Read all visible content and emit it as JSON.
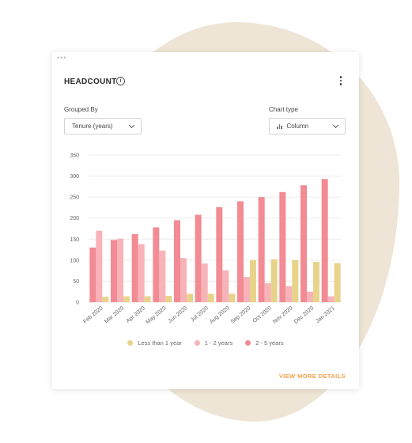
{
  "card": {
    "title": "HEADCOUNT",
    "info_icon": "info-circle-icon",
    "menu_icon": "vertical-ellipsis-icon",
    "grouped_by_label": "Grouped By",
    "grouped_by_value": "Tenure (years)",
    "chart_type_label": "Chart type",
    "chart_type_value": "Column",
    "view_more_label": "VIEW MORE DETAILS"
  },
  "colors": {
    "less_than_1": "#e8d38a",
    "one_to_two": "#f7b3b8",
    "two_to_five": "#f28b93",
    "accent": "#f5a04a",
    "background_blob": "#efe5d6"
  },
  "chart_data": {
    "type": "bar",
    "categories": [
      "Feb 2020",
      "Mar 2020",
      "Apr 2020",
      "May 2020",
      "Jun 2020",
      "Jul 2020",
      "Aug 2020",
      "Sep 2020",
      "Oct 2020",
      "Nov 2020",
      "Dec 2020",
      "Jan 2021"
    ],
    "series": [
      {
        "name": "2 - 5 years",
        "color": "#f28b93",
        "values": [
          130,
          148,
          162,
          178,
          195,
          208,
          226,
          240,
          250,
          262,
          278,
          293
        ]
      },
      {
        "name": "1 - 2 years",
        "color": "#f7b3b8",
        "values": [
          170,
          151,
          138,
          123,
          105,
          92,
          76,
          60,
          45,
          38,
          25,
          14
        ]
      },
      {
        "name": "Less than 1 year",
        "color": "#e8d38a",
        "values": [
          13,
          14,
          14,
          15,
          20,
          20,
          20,
          100,
          102,
          100,
          96,
          93
        ]
      }
    ],
    "ylim": [
      0,
      350
    ],
    "yticks": [
      0,
      50,
      100,
      150,
      200,
      250,
      300,
      350
    ],
    "grid": true,
    "legend_position": "bottom",
    "legend_order": [
      "Less than 1 year",
      "1 - 2 years",
      "2 - 5 years"
    ]
  }
}
